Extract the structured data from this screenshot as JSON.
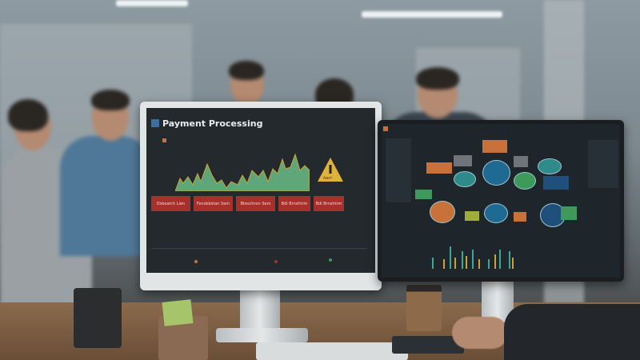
{
  "left_monitor": {
    "app_title": "Payment Processing",
    "alert_label": "Alert!",
    "buttons": [
      "Dsbsatch Lien",
      "Fendsbstan Sem",
      "Bteschron Sem",
      "Bdi Brnshtrm",
      "Bdi Brnshtrm"
    ],
    "colors": {
      "chart_fill": "#5fa77a",
      "chart_peak": "#c9a33a",
      "button_red": "#a8302c",
      "alert_yellow": "#e0b23a"
    }
  },
  "right_monitor": {
    "colors": {
      "node_blue": "#1f6a92",
      "node_teal": "#2f8a8a",
      "node_orange": "#c9713a",
      "node_green": "#3e9a5a"
    }
  }
}
